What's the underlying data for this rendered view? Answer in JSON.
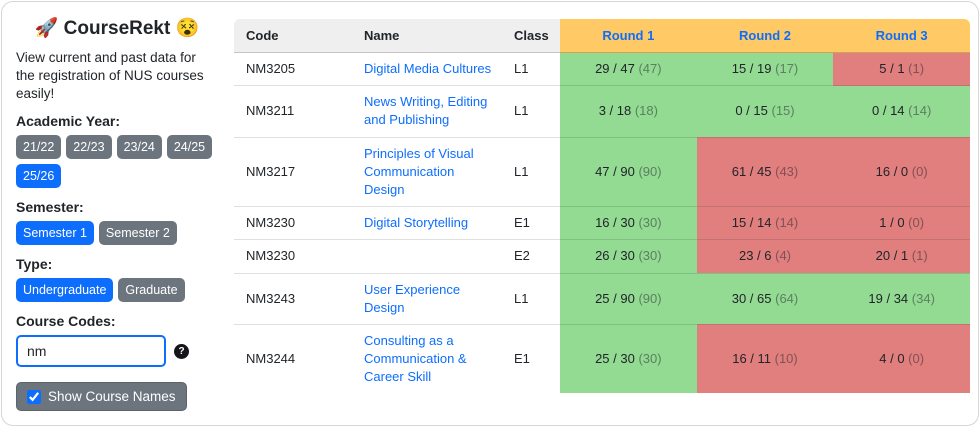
{
  "sidebar": {
    "title": "🚀 CourseRekt 😵",
    "description": "View current and past data for the registration of NUS courses easily!",
    "academic_year": {
      "label": "Academic Year:",
      "options": [
        {
          "label": "21/22",
          "active": false
        },
        {
          "label": "22/23",
          "active": false
        },
        {
          "label": "23/24",
          "active": false
        },
        {
          "label": "24/25",
          "active": false
        },
        {
          "label": "25/26",
          "active": true
        }
      ]
    },
    "semester": {
      "label": "Semester:",
      "options": [
        {
          "label": "Semester 1",
          "active": true
        },
        {
          "label": "Semester 2",
          "active": false
        }
      ]
    },
    "type": {
      "label": "Type:",
      "options": [
        {
          "label": "Undergraduate",
          "active": true
        },
        {
          "label": "Graduate",
          "active": false
        }
      ]
    },
    "course_codes": {
      "label": "Course Codes:",
      "value": "nm",
      "help_icon": "?"
    },
    "show_course_names": {
      "label": "Show Course Names",
      "checked": true
    }
  },
  "table": {
    "columns": [
      "Code",
      "Name",
      "Class",
      "Round 1",
      "Round 2",
      "Round 3"
    ],
    "rows": [
      {
        "code": "NM3205",
        "name": "Digital Media Cultures",
        "class": "L1",
        "rounds": [
          {
            "main": "29 / 47",
            "sub": "(47)",
            "status": "green"
          },
          {
            "main": "15 / 19",
            "sub": "(17)",
            "status": "green"
          },
          {
            "main": "5 / 1",
            "sub": "(1)",
            "status": "red"
          }
        ]
      },
      {
        "code": "NM3211",
        "name": "News Writing, Editing and Publishing",
        "class": "L1",
        "rounds": [
          {
            "main": "3 / 18",
            "sub": "(18)",
            "status": "green"
          },
          {
            "main": "0 / 15",
            "sub": "(15)",
            "status": "green"
          },
          {
            "main": "0 / 14",
            "sub": "(14)",
            "status": "green"
          }
        ]
      },
      {
        "code": "NM3217",
        "name": "Principles of Visual Communication Design",
        "class": "L1",
        "rounds": [
          {
            "main": "47 / 90",
            "sub": "(90)",
            "status": "green"
          },
          {
            "main": "61 / 45",
            "sub": "(43)",
            "status": "red"
          },
          {
            "main": "16 / 0",
            "sub": "(0)",
            "status": "red"
          }
        ]
      },
      {
        "code": "NM3230",
        "name": "Digital Storytelling",
        "class": "E1",
        "rounds": [
          {
            "main": "16 / 30",
            "sub": "(30)",
            "status": "green"
          },
          {
            "main": "15 / 14",
            "sub": "(14)",
            "status": "red"
          },
          {
            "main": "1 / 0",
            "sub": "(0)",
            "status": "red"
          }
        ]
      },
      {
        "code": "NM3230",
        "name": "",
        "class": "E2",
        "rounds": [
          {
            "main": "26 / 30",
            "sub": "(30)",
            "status": "green"
          },
          {
            "main": "23 / 6",
            "sub": "(4)",
            "status": "red"
          },
          {
            "main": "20 / 1",
            "sub": "(1)",
            "status": "red"
          }
        ]
      },
      {
        "code": "NM3243",
        "name": "User Experience Design",
        "class": "L1",
        "rounds": [
          {
            "main": "25 / 90",
            "sub": "(90)",
            "status": "green"
          },
          {
            "main": "30 / 65",
            "sub": "(64)",
            "status": "green"
          },
          {
            "main": "19 / 34",
            "sub": "(34)",
            "status": "green"
          }
        ]
      },
      {
        "code": "NM3244",
        "name": "Consulting as a Communication & Career Skill",
        "class": "E1",
        "rounds": [
          {
            "main": "25 / 30",
            "sub": "(30)",
            "status": "green"
          },
          {
            "main": "16 / 11",
            "sub": "(10)",
            "status": "red"
          },
          {
            "main": "4 / 0",
            "sub": "(0)",
            "status": "red"
          }
        ]
      }
    ]
  },
  "colors": {
    "green_cell": "#93da93",
    "red_cell": "#e17e7e",
    "round_header_bg": "#ffc965",
    "round_header_text": "#0d6efd",
    "plain_header_bg": "#efefef",
    "primary_blue": "#0d6efd",
    "secondary_gray": "#6c757d",
    "link_blue": "#0d6efd"
  }
}
